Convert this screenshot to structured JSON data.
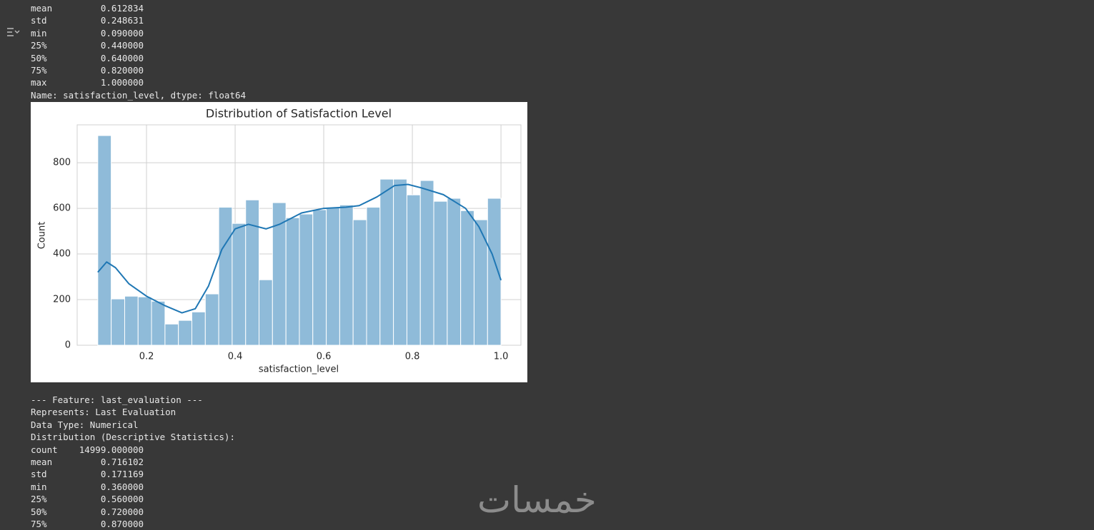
{
  "output_top": [
    "mean         0.612834",
    "std          0.248631",
    "min          0.090000",
    "25%          0.440000",
    "50%          0.640000",
    "75%          0.820000",
    "max          1.000000",
    "Name: satisfaction_level, dtype: float64"
  ],
  "chart_data": {
    "type": "histogram",
    "title": "Distribution of Satisfaction Level",
    "xlabel": "satisfaction_level",
    "ylabel": "Count",
    "bins": [
      0.09,
      0.1203,
      0.1507,
      0.181,
      0.2113,
      0.2417,
      0.272,
      0.3023,
      0.3327,
      0.363,
      0.3933,
      0.4237,
      0.454,
      0.4843,
      0.5147,
      0.545,
      0.5753,
      0.6057,
      0.636,
      0.6663,
      0.6967,
      0.727,
      0.7573,
      0.7877,
      0.818,
      0.8483,
      0.8787,
      0.909,
      0.9393,
      0.9697,
      1.0
    ],
    "counts": [
      919,
      203,
      215,
      212,
      193,
      93,
      109,
      146,
      225,
      605,
      534,
      637,
      287,
      625,
      559,
      575,
      594,
      603,
      615,
      550,
      605,
      728,
      728,
      659,
      722,
      631,
      644,
      590,
      550,
      644
    ],
    "color": "#8fbbd9",
    "edgecolor": "#ffffff",
    "kde": {
      "x": [
        0.09,
        0.11,
        0.13,
        0.16,
        0.2,
        0.24,
        0.28,
        0.31,
        0.34,
        0.37,
        0.4,
        0.43,
        0.47,
        0.5,
        0.55,
        0.6,
        0.65,
        0.68,
        0.72,
        0.76,
        0.79,
        0.82,
        0.87,
        0.92,
        0.95,
        0.98,
        1.0
      ],
      "values": [
        320,
        365,
        340,
        270,
        215,
        175,
        142,
        160,
        260,
        420,
        510,
        530,
        510,
        530,
        580,
        600,
        605,
        612,
        650,
        700,
        705,
        690,
        660,
        600,
        520,
        400,
        285
      ],
      "color": "#1f77b4"
    },
    "xlim": [
      0.0435,
      1.045
    ],
    "ylim": [
      0,
      966
    ],
    "xticks": [
      0.2,
      0.4,
      0.6,
      0.8,
      {
        "value": 1,
        "label": "1.0"
      }
    ],
    "yticks": [
      0,
      200,
      400,
      600,
      800
    ],
    "grid": true
  },
  "output_bottom": [
    "--- Feature: last_evaluation ---",
    "Represents: Last Evaluation",
    "Data Type: Numerical",
    "Distribution (Descriptive Statistics):",
    "count    14999.000000",
    "mean         0.716102",
    "std          0.171169",
    "min          0.360000",
    "25%          0.560000",
    "50%          0.720000",
    "75%          0.870000"
  ],
  "watermark": "خمسات"
}
